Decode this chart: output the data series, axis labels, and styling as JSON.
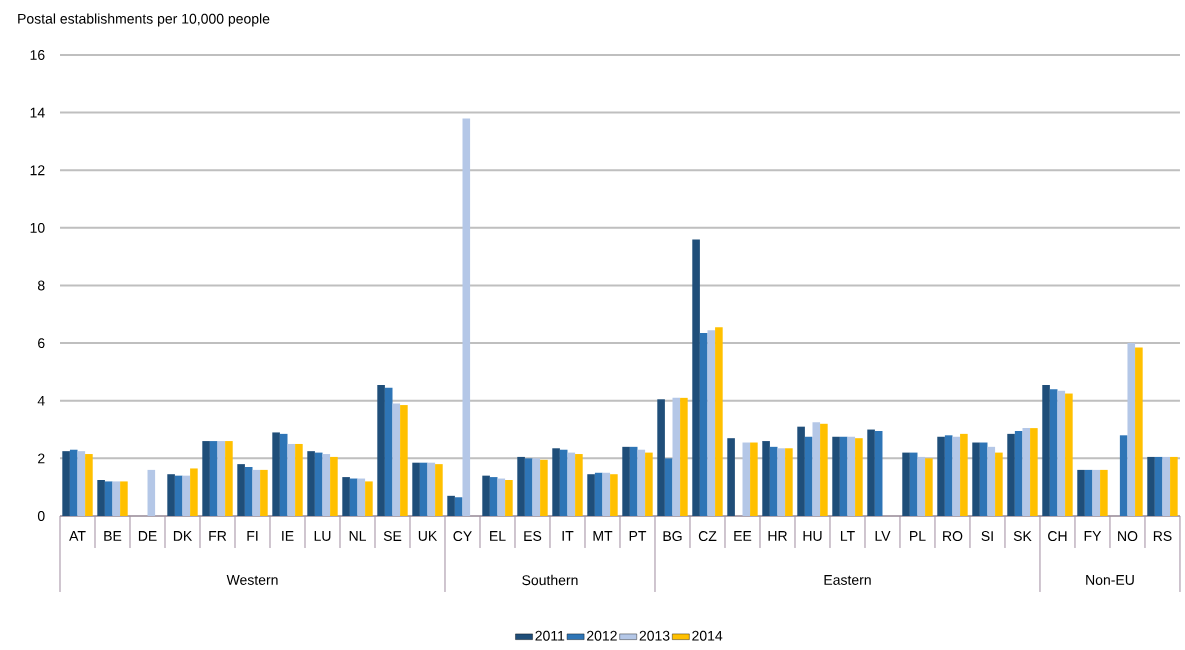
{
  "chart_data": {
    "type": "bar",
    "ylabel": "Postal establishments per 10,000 people",
    "categories": [
      "AT",
      "BE",
      "DE",
      "DK",
      "FR",
      "FI",
      "IE",
      "LU",
      "NL",
      "SE",
      "UK",
      "CY",
      "EL",
      "ES",
      "IT",
      "MT",
      "PT",
      "BG",
      "CZ",
      "EE",
      "HR",
      "HU",
      "LT",
      "LV",
      "PL",
      "RO",
      "SI",
      "SK",
      "CH",
      "FY",
      "NO",
      "RS"
    ],
    "series": [
      {
        "name": "2011",
        "color": "#1f4e79",
        "values": [
          2.25,
          1.25,
          null,
          1.45,
          2.6,
          1.8,
          2.9,
          2.25,
          1.35,
          4.55,
          1.85,
          0.7,
          1.4,
          2.05,
          2.35,
          1.45,
          2.4,
          4.05,
          9.6,
          2.7,
          2.6,
          3.1,
          2.75,
          3.0,
          2.2,
          2.75,
          2.55,
          2.85,
          4.55,
          1.6,
          null,
          2.05
        ]
      },
      {
        "name": "2012",
        "color": "#2e75b6",
        "values": [
          2.3,
          1.2,
          null,
          1.4,
          2.6,
          1.7,
          2.85,
          2.2,
          1.3,
          4.45,
          1.85,
          0.65,
          1.35,
          2.0,
          2.3,
          1.5,
          2.4,
          2.0,
          6.35,
          null,
          2.4,
          2.75,
          2.75,
          2.95,
          2.2,
          2.8,
          2.55,
          2.95,
          4.4,
          1.6,
          2.8,
          2.05
        ]
      },
      {
        "name": "2013",
        "color": "#b4c7e7",
        "values": [
          2.25,
          1.2,
          1.6,
          1.4,
          2.6,
          1.6,
          2.5,
          2.15,
          1.3,
          3.9,
          1.85,
          13.8,
          1.3,
          2.0,
          2.2,
          1.5,
          2.3,
          4.1,
          6.45,
          2.55,
          2.35,
          3.25,
          2.75,
          null,
          2.05,
          2.75,
          2.4,
          3.05,
          4.35,
          1.6,
          6.0,
          2.05
        ]
      },
      {
        "name": "2014",
        "color": "#ffc000",
        "values": [
          2.15,
          1.2,
          null,
          1.65,
          2.6,
          1.6,
          2.5,
          2.05,
          1.2,
          3.85,
          1.8,
          null,
          1.25,
          1.95,
          2.15,
          1.45,
          2.2,
          4.1,
          6.55,
          2.55,
          2.35,
          3.2,
          2.7,
          null,
          2.0,
          2.85,
          2.2,
          3.05,
          4.25,
          1.6,
          5.85,
          2.05
        ]
      }
    ],
    "annotations": [
      "Western",
      "Southern",
      "Eastern",
      "Non-EU"
    ],
    "ylim": [
      0,
      16
    ],
    "yticks": [
      0,
      2,
      4,
      6,
      8,
      10,
      12,
      14,
      16
    ],
    "grid": "y",
    "legend": "bottom"
  }
}
